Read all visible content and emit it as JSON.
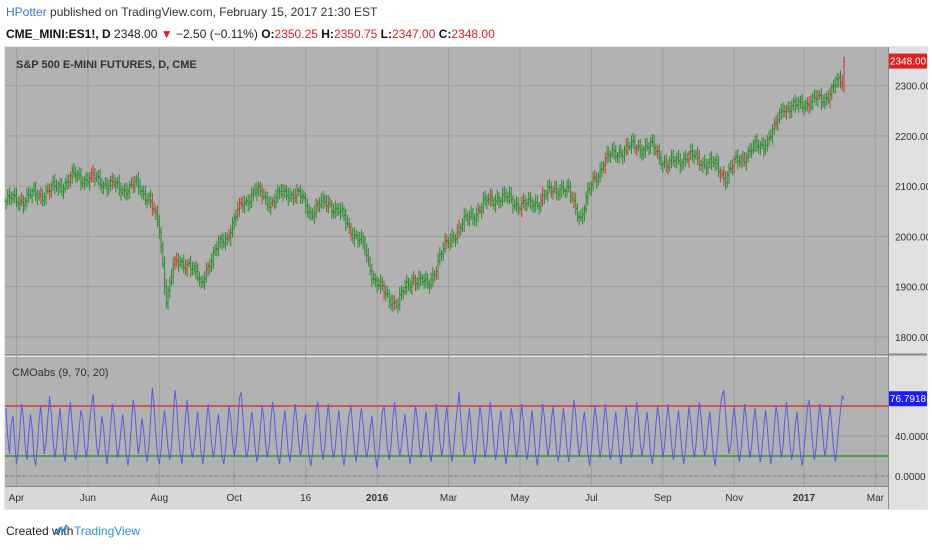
{
  "header": {
    "author": "HPotter",
    "published": "published on TradingView.com, February 15, 2017 21:30 EST",
    "symbol": "CME_MINI:ES1!, D",
    "last": "2348.00",
    "arrow": "▼",
    "change": "−2.50 (−0.11%)",
    "o_label": "O:",
    "o_val": "2350.25",
    "h_label": "H:",
    "h_val": "2350.75",
    "l_label": "L:",
    "l_val": "2347.00",
    "c_label": "C:",
    "c_val": "2348.00"
  },
  "footer": {
    "created": "Created with",
    "brand": "TradingView"
  },
  "colors": {
    "background": "#b2b2b2",
    "grid": "#9e9e9e",
    "up": "#2e8b2e",
    "down": "#e03030",
    "cmo_line": "#5a5ae6",
    "upper_level": "#e02020",
    "lower_level": "#1a8a1a",
    "price_tag": "#e02020",
    "cmo_tag": "#1a1aff"
  },
  "chart_data": [
    {
      "type": "ohlc",
      "title": "S&P 500 E-MINI FUTURES, D, CME",
      "last_value_label": "2348.00",
      "ylim": [
        1770,
        2375
      ],
      "y_ticks": [
        "2300.00",
        "2200.00",
        "2100.00",
        "2000.00",
        "1900.00",
        "1800.00"
      ],
      "y_tick_values": [
        2300,
        2200,
        2100,
        2000,
        1900,
        1800
      ],
      "x_ticks": [
        "Apr",
        "Jun",
        "Aug",
        "Oct",
        "16",
        "2016",
        "Mar",
        "May",
        "Jul",
        "Sep",
        "Nov",
        "2017",
        "Mar"
      ],
      "x_tick_index": [
        6,
        47,
        88,
        131,
        172,
        213,
        254,
        295,
        336,
        377,
        418,
        458,
        499
      ],
      "grid": true,
      "close_anchors": [
        [
          0,
          2070
        ],
        [
          10,
          2075
        ],
        [
          25,
          2090
        ],
        [
          40,
          2120
        ],
        [
          55,
          2110
        ],
        [
          65,
          2095
        ],
        [
          75,
          2100
        ],
        [
          82,
          2080
        ],
        [
          88,
          2010
        ],
        [
          92,
          1880
        ],
        [
          96,
          1940
        ],
        [
          105,
          1950
        ],
        [
          112,
          1900
        ],
        [
          115,
          1940
        ],
        [
          128,
          2010
        ],
        [
          135,
          2060
        ],
        [
          142,
          2090
        ],
        [
          152,
          2070
        ],
        [
          162,
          2090
        ],
        [
          168,
          2080
        ],
        [
          175,
          2050
        ],
        [
          185,
          2070
        ],
        [
          193,
          2040
        ],
        [
          205,
          1980
        ],
        [
          211,
          1920
        ],
        [
          218,
          1880
        ],
        [
          225,
          1870
        ],
        [
          234,
          1920
        ],
        [
          242,
          1900
        ],
        [
          249,
          1960
        ],
        [
          258,
          2010
        ],
        [
          267,
          2040
        ],
        [
          273,
          2060
        ],
        [
          282,
          2080
        ],
        [
          291,
          2070
        ],
        [
          300,
          2060
        ],
        [
          309,
          2080
        ],
        [
          318,
          2100
        ],
        [
          323,
          2085
        ],
        [
          330,
          2040
        ],
        [
          336,
          2100
        ],
        [
          343,
          2150
        ],
        [
          352,
          2170
        ],
        [
          362,
          2180
        ],
        [
          372,
          2175
        ],
        [
          380,
          2140
        ],
        [
          390,
          2160
        ],
        [
          400,
          2150
        ],
        [
          407,
          2140
        ],
        [
          413,
          2120
        ],
        [
          420,
          2150
        ],
        [
          427,
          2170
        ],
        [
          433,
          2180
        ],
        [
          441,
          2210
        ],
        [
          446,
          2260
        ],
        [
          453,
          2255
        ],
        [
          460,
          2270
        ],
        [
          468,
          2270
        ],
        [
          476,
          2300
        ],
        [
          483,
          2310
        ],
        [
          490,
          2348
        ]
      ]
    },
    {
      "type": "line",
      "title": "CMOabs (9, 70, 20)",
      "last_value_label": "76.7918",
      "ylim": [
        -8,
        118
      ],
      "y_ticks": [
        "40.0000",
        "0.0000"
      ],
      "y_tick_values": [
        40,
        0
      ],
      "levels": {
        "upper": 70,
        "lower": 20,
        "zero": 0
      },
      "series": [
        {
          "values": [
            68,
            40,
            22,
            52,
            60,
            34,
            12,
            26,
            46,
            72,
            58,
            30,
            16,
            40,
            62,
            48,
            20,
            10,
            30,
            56,
            70,
            44,
            22,
            34,
            58,
            80,
            62,
            36,
            18,
            30,
            52,
            68,
            46,
            24,
            14,
            36,
            60,
            74,
            50,
            28,
            16,
            26,
            48,
            66,
            58,
            34,
            18,
            30,
            54,
            70,
            82,
            56,
            30,
            20,
            36,
            60,
            48,
            26,
            12,
            28,
            50,
            72,
            60,
            38,
            18,
            28,
            46,
            62,
            44,
            22,
            10,
            26,
            52,
            76,
            64,
            40,
            22,
            34,
            58,
            46,
            24,
            14,
            30,
            56,
            88,
            70,
            42,
            20,
            12,
            26,
            50,
            66,
            48,
            28,
            16,
            30,
            60,
            86,
            70,
            40,
            22,
            12,
            34,
            58,
            76,
            52,
            30,
            18,
            28,
            48,
            64,
            44,
            24,
            12,
            28,
            54,
            72,
            56,
            32,
            18,
            30,
            50,
            62,
            40,
            20,
            12,
            26,
            48,
            70,
            58,
            34,
            20,
            30,
            52,
            78,
            84,
            60,
            34,
            18,
            26,
            46,
            64,
            50,
            28,
            14,
            26,
            48,
            70,
            58,
            32,
            18,
            30,
            56,
            74,
            60,
            36,
            20,
            12,
            28,
            50,
            66,
            46,
            24,
            14,
            30,
            54,
            72,
            56,
            34,
            20,
            30,
            52,
            62,
            40,
            20,
            10,
            24,
            46,
            68,
            74,
            50,
            28,
            16,
            30,
            56,
            72,
            54,
            30,
            18,
            28,
            50,
            66,
            46,
            22,
            10,
            24,
            46,
            62,
            70,
            48,
            26,
            14,
            30,
            54,
            68,
            50,
            30,
            18,
            28,
            46,
            60,
            40,
            20,
            8,
            22,
            42,
            64,
            70,
            50,
            28,
            16,
            30,
            56,
            74,
            58,
            34,
            20,
            30,
            48,
            62,
            42,
            22,
            12,
            26,
            50,
            70,
            58,
            36,
            18,
            28,
            46,
            64,
            48,
            26,
            14,
            28,
            52,
            72,
            58,
            36,
            20,
            30,
            54,
            70,
            48,
            26,
            14,
            28,
            50,
            66,
            84,
            60,
            36,
            20,
            30,
            52,
            68,
            46,
            24,
            12,
            26,
            48,
            70,
            58,
            34,
            18,
            30,
            56,
            74,
            56,
            32,
            16,
            28,
            50,
            66,
            46,
            24,
            12,
            26,
            48,
            68,
            56,
            34,
            18,
            30,
            54,
            72,
            54,
            30,
            16,
            28,
            50,
            66,
            44,
            22,
            10,
            26,
            50,
            72,
            60,
            38,
            20,
            30,
            56,
            70,
            48,
            26,
            14,
            28,
            52,
            68,
            50,
            28,
            14,
            30,
            56,
            76,
            62,
            38,
            20,
            30,
            52,
            64,
            44,
            22,
            10,
            26,
            48,
            70,
            58,
            34,
            18,
            30,
            54,
            72,
            54,
            30,
            16,
            28,
            48,
            64,
            46,
            24,
            12,
            28,
            52,
            70,
            56,
            34,
            18,
            30,
            56,
            74,
            58,
            34,
            20,
            30,
            50,
            64,
            44,
            22,
            12,
            26,
            50,
            70,
            58,
            36,
            18,
            30,
            54,
            72,
            54,
            32,
            16,
            28,
            50,
            66,
            46,
            24,
            12,
            26,
            48,
            70,
            56,
            34,
            18,
            30,
            56,
            74,
            58,
            36,
            20,
            28,
            50,
            64,
            44,
            22,
            10,
            26,
            48,
            68,
            80,
            86,
            64,
            40,
            22,
            30,
            54,
            70,
            50,
            28,
            14,
            28,
            52,
            72,
            56,
            34,
            18,
            30,
            54,
            68,
            48,
            26,
            14,
            28,
            50,
            66,
            48,
            26,
            12,
            26,
            48,
            70,
            58,
            36,
            18,
            30,
            56,
            74,
            56,
            32,
            16,
            28,
            50,
            64,
            44,
            22,
            10,
            24,
            46,
            68,
            76,
            56,
            32,
            16,
            28,
            52,
            72,
            58,
            36,
            20,
            30,
            54,
            70,
            50,
            28,
            14,
            28,
            50,
            66,
            80,
            76.79
          ]
        }
      ]
    }
  ]
}
